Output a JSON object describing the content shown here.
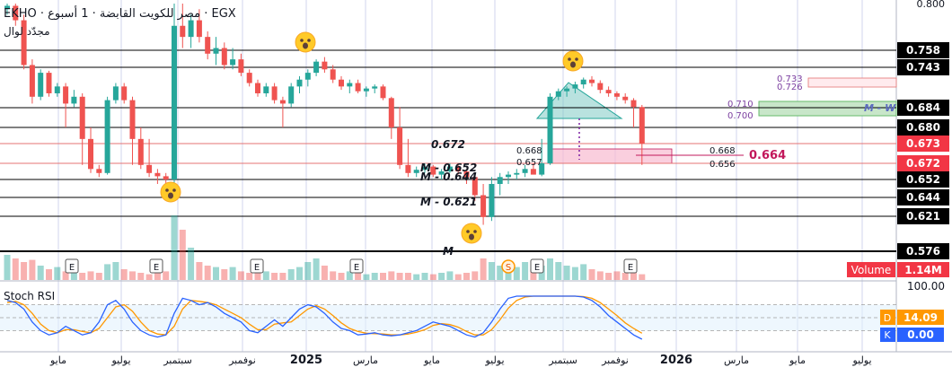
{
  "header": {
    "symbol": "EKHO",
    "title": "EKHO · مصر للكويت القابضة · 1 أسبوع · EGX",
    "subtitle": "مجدّد لوال"
  },
  "colors": {
    "up": "#26a69a",
    "down": "#ef5350",
    "price_tag_red": "#f23645",
    "tag_black": "#000000",
    "volume_tag": "#f23645",
    "stoch_d": "#ff9800",
    "stoch_k": "#2962ff",
    "fib_purple": "#7b3fa0",
    "target_pink": "#c2185b",
    "green_zone": "#c8e6c9",
    "pink_zone": "#f8bbd0",
    "teal_triangle": "#80cbc4"
  },
  "chart_data": {
    "type": "candlestick",
    "interval": "1W",
    "ylim": [
      0.57,
      0.8
    ],
    "x_ticks": [
      "مايو",
      "يوليو",
      "سبتمبر",
      "نوفمبر",
      "2025",
      "مارس",
      "مايو",
      "يوليو",
      "سبتمبر",
      "نوفمبر",
      "2026",
      "مارس",
      "مايو",
      "يوليو"
    ],
    "y_top_label": "0.800",
    "candles": [
      [
        0.795,
        0.8,
        0.79,
        0.798
      ],
      [
        0.798,
        0.8,
        0.78,
        0.785
      ],
      [
        0.785,
        0.79,
        0.74,
        0.745
      ],
      [
        0.745,
        0.75,
        0.69,
        0.7
      ],
      [
        0.7,
        0.74,
        0.695,
        0.735
      ],
      [
        0.735,
        0.738,
        0.7,
        0.705
      ],
      [
        0.705,
        0.72,
        0.7,
        0.715
      ],
      [
        0.715,
        0.72,
        0.68,
        0.69
      ],
      [
        0.69,
        0.71,
        0.685,
        0.7
      ],
      [
        0.7,
        0.705,
        0.67,
        0.675
      ],
      [
        0.675,
        0.68,
        0.66,
        0.665
      ],
      [
        0.665,
        0.67,
        0.655,
        0.66
      ],
      [
        0.66,
        0.7,
        0.658,
        0.695
      ],
      [
        0.695,
        0.72,
        0.69,
        0.715
      ],
      [
        0.715,
        0.72,
        0.69,
        0.695
      ],
      [
        0.695,
        0.7,
        0.67,
        0.675
      ],
      [
        0.675,
        0.68,
        0.665,
        0.67
      ],
      [
        0.67,
        0.675,
        0.655,
        0.66
      ],
      [
        0.66,
        0.665,
        0.65,
        0.656
      ],
      [
        0.656,
        0.66,
        0.648,
        0.652
      ],
      [
        0.652,
        0.8,
        0.65,
        0.78
      ],
      [
        0.78,
        0.8,
        0.76,
        0.77
      ],
      [
        0.77,
        0.79,
        0.76,
        0.785
      ],
      [
        0.785,
        0.795,
        0.765,
        0.77
      ],
      [
        0.77,
        0.775,
        0.75,
        0.755
      ],
      [
        0.755,
        0.77,
        0.745,
        0.76
      ],
      [
        0.76,
        0.765,
        0.74,
        0.745
      ],
      [
        0.745,
        0.76,
        0.74,
        0.75
      ],
      [
        0.75,
        0.755,
        0.73,
        0.735
      ],
      [
        0.735,
        0.74,
        0.715,
        0.72
      ],
      [
        0.72,
        0.725,
        0.7,
        0.705
      ],
      [
        0.705,
        0.72,
        0.7,
        0.715
      ],
      [
        0.715,
        0.72,
        0.69,
        0.695
      ],
      [
        0.695,
        0.7,
        0.68,
        0.69
      ],
      [
        0.69,
        0.72,
        0.685,
        0.715
      ],
      [
        0.715,
        0.73,
        0.705,
        0.725
      ],
      [
        0.725,
        0.74,
        0.715,
        0.735
      ],
      [
        0.735,
        0.75,
        0.73,
        0.748
      ],
      [
        0.748,
        0.752,
        0.735,
        0.74
      ],
      [
        0.74,
        0.745,
        0.72,
        0.725
      ],
      [
        0.725,
        0.73,
        0.71,
        0.715
      ],
      [
        0.715,
        0.725,
        0.705,
        0.72
      ],
      [
        0.72,
        0.725,
        0.705,
        0.708
      ],
      [
        0.708,
        0.715,
        0.7,
        0.712
      ],
      [
        0.712,
        0.718,
        0.705,
        0.715
      ],
      [
        0.715,
        0.718,
        0.695,
        0.698
      ],
      [
        0.698,
        0.7,
        0.675,
        0.68
      ],
      [
        0.68,
        0.685,
        0.665,
        0.67
      ],
      [
        0.67,
        0.675,
        0.655,
        0.66
      ],
      [
        0.66,
        0.668,
        0.655,
        0.664
      ],
      [
        0.664,
        0.672,
        0.66,
        0.668
      ],
      [
        0.668,
        0.67,
        0.655,
        0.658
      ],
      [
        0.658,
        0.665,
        0.652,
        0.662
      ],
      [
        0.662,
        0.672,
        0.66,
        0.668
      ],
      [
        0.668,
        0.67,
        0.658,
        0.662
      ],
      [
        0.662,
        0.665,
        0.65,
        0.655
      ],
      [
        0.655,
        0.66,
        0.64,
        0.645
      ],
      [
        0.645,
        0.65,
        0.61,
        0.62
      ],
      [
        0.62,
        0.655,
        0.615,
        0.65
      ],
      [
        0.65,
        0.66,
        0.645,
        0.655
      ],
      [
        0.655,
        0.662,
        0.65,
        0.658
      ],
      [
        0.658,
        0.665,
        0.652,
        0.66
      ],
      [
        0.66,
        0.67,
        0.655,
        0.665
      ],
      [
        0.665,
        0.672,
        0.66,
        0.658
      ],
      [
        0.658,
        0.675,
        0.656,
        0.672
      ],
      [
        0.672,
        0.705,
        0.67,
        0.7
      ],
      [
        0.7,
        0.712,
        0.695,
        0.708
      ],
      [
        0.708,
        0.715,
        0.7,
        0.712
      ],
      [
        0.712,
        0.722,
        0.705,
        0.718
      ],
      [
        0.718,
        0.728,
        0.712,
        0.725
      ],
      [
        0.725,
        0.73,
        0.715,
        0.72
      ],
      [
        0.72,
        0.724,
        0.705,
        0.71
      ],
      [
        0.71,
        0.715,
        0.7,
        0.705
      ],
      [
        0.705,
        0.708,
        0.695,
        0.7
      ],
      [
        0.7,
        0.705,
        0.69,
        0.695
      ],
      [
        0.695,
        0.698,
        0.68,
        0.685
      ],
      [
        0.685,
        0.688,
        0.67,
        0.673
      ]
    ],
    "volume": [
      0.35,
      0.3,
      0.25,
      0.28,
      0.2,
      0.15,
      0.18,
      0.12,
      0.15,
      0.1,
      0.12,
      0.1,
      0.22,
      0.25,
      0.15,
      0.12,
      0.1,
      0.08,
      0.1,
      0.12,
      0.9,
      0.7,
      0.45,
      0.25,
      0.2,
      0.18,
      0.15,
      0.18,
      0.12,
      0.1,
      0.1,
      0.12,
      0.1,
      0.1,
      0.15,
      0.18,
      0.25,
      0.3,
      0.2,
      0.12,
      0.1,
      0.12,
      0.1,
      0.08,
      0.1,
      0.1,
      0.12,
      0.1,
      0.1,
      0.08,
      0.1,
      0.08,
      0.1,
      0.12,
      0.08,
      0.1,
      0.12,
      0.3,
      0.25,
      0.2,
      0.15,
      0.18,
      0.25,
      0.15,
      0.2,
      0.3,
      0.25,
      0.2,
      0.18,
      0.22,
      0.15,
      0.12,
      0.1,
      0.12,
      0.1,
      0.1,
      0.08
    ],
    "event_markers": [
      "E",
      "E",
      "E",
      "E",
      "S",
      "E",
      "E"
    ],
    "horizontal_levels": [
      {
        "value": 0.758,
        "label": "0.758",
        "style": "black"
      },
      {
        "value": 0.743,
        "label": "0.743",
        "style": "black"
      },
      {
        "value": 0.684,
        "label": "0.684",
        "style": "black"
      },
      {
        "value": 0.68,
        "label": "0.680",
        "style": "black"
      },
      {
        "value": 0.673,
        "label": "0.673",
        "style": "red"
      },
      {
        "value": 0.672,
        "label": "0.672",
        "style": "red"
      },
      {
        "value": 0.652,
        "label": "0.652",
        "style": "black"
      },
      {
        "value": 0.644,
        "label": "0.644",
        "style": "black"
      },
      {
        "value": 0.621,
        "label": "0.621",
        "style": "black"
      },
      {
        "value": 0.576,
        "label": "0.576",
        "style": "black"
      }
    ],
    "annotations": {
      "level_672": "0.672",
      "m_652": "M - 0.652",
      "m_644": "M - 0.644",
      "m_621": "M - 0.621",
      "m_576": "M",
      "l_668": "0.668",
      "l_657": "0.657",
      "r_668": "0.668",
      "r_656": "0.656",
      "target": "0.664",
      "fib_733": "0.733",
      "fib_726": "0.726",
      "fib_710": "0.710",
      "fib_700": "0.700",
      "mw_label": "M - W"
    },
    "volume_label": "Volume",
    "volume_value": "1.14M",
    "stoch": {
      "title": "Stoch RSI",
      "top_value": "100.00",
      "d_label": "D",
      "d_value": "14.09",
      "k_label": "K",
      "k_value": "0.00",
      "k": [
        90,
        85,
        70,
        40,
        20,
        10,
        15,
        30,
        20,
        10,
        15,
        40,
        80,
        90,
        70,
        40,
        20,
        10,
        5,
        10,
        60,
        95,
        90,
        80,
        85,
        75,
        60,
        50,
        40,
        20,
        15,
        30,
        45,
        30,
        50,
        70,
        80,
        75,
        60,
        40,
        25,
        20,
        10,
        12,
        15,
        10,
        8,
        10,
        15,
        20,
        30,
        40,
        35,
        30,
        20,
        10,
        5,
        15,
        40,
        70,
        95,
        100,
        100,
        100,
        100,
        100,
        100,
        100,
        100,
        98,
        90,
        75,
        55,
        40,
        25,
        10,
        0
      ],
      "d": [
        85,
        88,
        80,
        60,
        35,
        20,
        15,
        22,
        22,
        18,
        15,
        25,
        50,
        75,
        80,
        65,
        40,
        20,
        12,
        10,
        30,
        70,
        90,
        88,
        85,
        80,
        70,
        60,
        50,
        35,
        22,
        22,
        35,
        38,
        40,
        55,
        70,
        78,
        70,
        55,
        38,
        25,
        18,
        14,
        13,
        12,
        10,
        10,
        12,
        16,
        22,
        32,
        36,
        34,
        28,
        18,
        10,
        10,
        22,
        45,
        72,
        90,
        98,
        100,
        100,
        100,
        100,
        100,
        100,
        99,
        95,
        85,
        70,
        55,
        38,
        25,
        14
      ]
    }
  }
}
